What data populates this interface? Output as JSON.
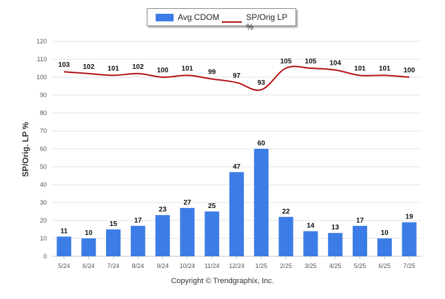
{
  "legend": {
    "bar_label": "Avg CDOM",
    "line_label": "SP/Orig LP %"
  },
  "y_axis_title": "SP/Orig. LP %",
  "copyright": "Copyright © Trendgraphix, Inc.",
  "colors": {
    "bar": "#3c7ce6",
    "line": "#b40f0f",
    "grid": "#e3e3e3",
    "axis": "#c0c0c0"
  },
  "chart_data": {
    "type": "bar",
    "categories": [
      "5/24",
      "6/24",
      "7/24",
      "8/24",
      "9/24",
      "10/24",
      "11/24",
      "12/24",
      "1/25",
      "2/25",
      "3/25",
      "4/25",
      "5/25",
      "6/25",
      "7/25"
    ],
    "series": [
      {
        "name": "Avg CDOM",
        "type": "bar",
        "values": [
          11,
          10,
          15,
          17,
          23,
          27,
          25,
          47,
          60,
          22,
          14,
          13,
          17,
          10,
          19
        ]
      },
      {
        "name": "SP/Orig LP %",
        "type": "line",
        "values": [
          103,
          102,
          101,
          102,
          100,
          101,
          99,
          97,
          93,
          105,
          105,
          104,
          101,
          101,
          100
        ]
      }
    ],
    "ylabel": "SP/Orig. LP %",
    "ylim": [
      0,
      120
    ],
    "yticks": [
      0,
      10,
      20,
      30,
      40,
      50,
      60,
      70,
      80,
      90,
      100,
      110,
      120
    ],
    "grid": true,
    "legend_position": "top-center"
  }
}
